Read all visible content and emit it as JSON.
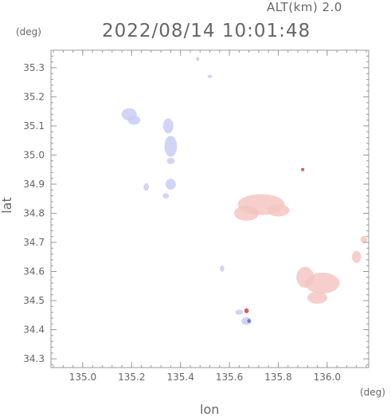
{
  "header": {
    "alt_label": "ALT(km) 2.0",
    "datetime": "2022/08/14 10:01:48"
  },
  "chart_data": {
    "type": "heatmap",
    "title": "2022/08/14 10:01:48",
    "subtitle": "ALT(km) 2.0",
    "xlabel": "lon",
    "ylabel": "lat",
    "x_unit": "(deg)",
    "y_unit": "(deg)",
    "xlim": [
      134.87,
      136.17
    ],
    "ylim": [
      34.27,
      35.36
    ],
    "x_ticks": [
      135.0,
      135.2,
      135.4,
      135.6,
      135.8,
      136.0
    ],
    "x_tick_labels": [
      "135.0",
      "135.2",
      "135.4",
      "135.6",
      "135.8",
      "136.0"
    ],
    "y_ticks": [
      34.3,
      34.4,
      34.5,
      34.6,
      34.7,
      34.8,
      34.9,
      35.0,
      35.1,
      35.2,
      35.3
    ],
    "y_tick_labels": [
      "34.3",
      "34.4",
      "34.5",
      "34.6",
      "34.7",
      "34.8",
      "34.9",
      "35.0",
      "35.1",
      "35.2",
      "35.3"
    ],
    "minor_ticks_per_major": 5,
    "colors": {
      "positive": "#f4c6c2",
      "negative": "#c9cdf4",
      "strong_positive": "#e0504a",
      "strong_negative": "#6a70d6"
    },
    "regions": [
      {
        "sign": "positive",
        "lon": 135.73,
        "lat": 34.83,
        "rlon": 0.095,
        "rlat": 0.035
      },
      {
        "sign": "positive",
        "lon": 135.67,
        "lat": 34.8,
        "rlon": 0.05,
        "rlat": 0.025
      },
      {
        "sign": "positive",
        "lon": 135.8,
        "lat": 34.81,
        "rlon": 0.045,
        "rlat": 0.02
      },
      {
        "sign": "positive",
        "lon": 135.98,
        "lat": 34.56,
        "rlon": 0.07,
        "rlat": 0.035
      },
      {
        "sign": "positive",
        "lon": 135.91,
        "lat": 34.58,
        "rlon": 0.035,
        "rlat": 0.035
      },
      {
        "sign": "positive",
        "lon": 135.96,
        "lat": 34.51,
        "rlon": 0.04,
        "rlat": 0.02
      },
      {
        "sign": "positive",
        "lon": 136.12,
        "lat": 34.65,
        "rlon": 0.018,
        "rlat": 0.02
      },
      {
        "sign": "positive",
        "lon": 136.15,
        "lat": 34.71,
        "rlon": 0.013,
        "rlat": 0.012
      },
      {
        "sign": "negative",
        "lon": 135.19,
        "lat": 35.14,
        "rlon": 0.03,
        "rlat": 0.02
      },
      {
        "sign": "negative",
        "lon": 135.21,
        "lat": 35.12,
        "rlon": 0.025,
        "rlat": 0.015
      },
      {
        "sign": "negative",
        "lon": 135.35,
        "lat": 35.1,
        "rlon": 0.02,
        "rlat": 0.025
      },
      {
        "sign": "negative",
        "lon": 135.36,
        "lat": 35.03,
        "rlon": 0.025,
        "rlat": 0.035
      },
      {
        "sign": "negative",
        "lon": 135.36,
        "lat": 34.98,
        "rlon": 0.015,
        "rlat": 0.01
      },
      {
        "sign": "negative",
        "lon": 135.36,
        "lat": 34.9,
        "rlon": 0.02,
        "rlat": 0.018
      },
      {
        "sign": "negative",
        "lon": 135.34,
        "lat": 34.86,
        "rlon": 0.012,
        "rlat": 0.008
      },
      {
        "sign": "negative",
        "lon": 135.26,
        "lat": 34.89,
        "rlon": 0.01,
        "rlat": 0.012
      },
      {
        "sign": "negative",
        "lon": 135.67,
        "lat": 34.43,
        "rlon": 0.02,
        "rlat": 0.013
      },
      {
        "sign": "negative",
        "lon": 135.64,
        "lat": 34.46,
        "rlon": 0.015,
        "rlat": 0.008
      },
      {
        "sign": "negative",
        "lon": 135.57,
        "lat": 34.61,
        "rlon": 0.008,
        "rlat": 0.01
      },
      {
        "sign": "negative",
        "lon": 135.47,
        "lat": 35.33,
        "rlon": 0.006,
        "rlat": 0.006
      },
      {
        "sign": "negative",
        "lon": 135.52,
        "lat": 35.27,
        "rlon": 0.008,
        "rlat": 0.005
      },
      {
        "sign": "strong_positive",
        "lon": 135.67,
        "lat": 34.465,
        "rlon": 0.008,
        "rlat": 0.008
      },
      {
        "sign": "strong_positive",
        "lon": 135.9,
        "lat": 34.95,
        "rlon": 0.006,
        "rlat": 0.005
      },
      {
        "sign": "strong_negative",
        "lon": 135.68,
        "lat": 34.43,
        "rlon": 0.006,
        "rlat": 0.006
      }
    ]
  }
}
